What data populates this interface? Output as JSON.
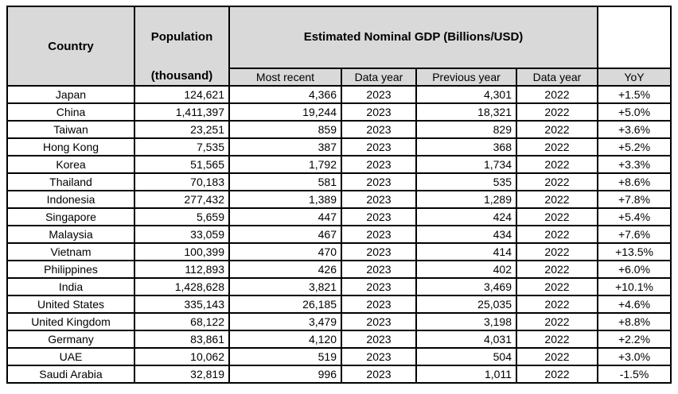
{
  "colors": {
    "header_bg": "#d9d9d9",
    "border": "#000000",
    "text": "#000000",
    "page_bg": "#ffffff",
    "row_bg": "#ffffff"
  },
  "header": {
    "country": "Country",
    "population_line1": "Population",
    "population_line2": "(thousand)",
    "gdp_group": "Estimated Nominal GDP (Billions/USD)",
    "subheaders": [
      "Most recent",
      "Data year",
      "Previous year",
      "Data year",
      "YoY"
    ]
  },
  "chart_data": {
    "type": "table",
    "title": "Estimated Nominal GDP (Billions/USD)",
    "columns": [
      "Country",
      "Population (thousand)",
      "Most recent",
      "Data year",
      "Previous year",
      "Data year",
      "YoY"
    ],
    "rows": [
      {
        "country": "Japan",
        "population": "124,621",
        "gdp_recent": "4,366",
        "data_year_recent": "2023",
        "gdp_previous": "4,301",
        "data_year_previous": "2022",
        "yoy": "+1.5%"
      },
      {
        "country": "China",
        "population": "1,411,397",
        "gdp_recent": "19,244",
        "data_year_recent": "2023",
        "gdp_previous": "18,321",
        "data_year_previous": "2022",
        "yoy": "+5.0%"
      },
      {
        "country": "Taiwan",
        "population": "23,251",
        "gdp_recent": "859",
        "data_year_recent": "2023",
        "gdp_previous": "829",
        "data_year_previous": "2022",
        "yoy": "+3.6%"
      },
      {
        "country": "Hong Kong",
        "population": "7,535",
        "gdp_recent": "387",
        "data_year_recent": "2023",
        "gdp_previous": "368",
        "data_year_previous": "2022",
        "yoy": "+5.2%"
      },
      {
        "country": "Korea",
        "population": "51,565",
        "gdp_recent": "1,792",
        "data_year_recent": "2023",
        "gdp_previous": "1,734",
        "data_year_previous": "2022",
        "yoy": "+3.3%"
      },
      {
        "country": "Thailand",
        "population": "70,183",
        "gdp_recent": "581",
        "data_year_recent": "2023",
        "gdp_previous": "535",
        "data_year_previous": "2022",
        "yoy": "+8.6%"
      },
      {
        "country": "Indonesia",
        "population": "277,432",
        "gdp_recent": "1,389",
        "data_year_recent": "2023",
        "gdp_previous": "1,289",
        "data_year_previous": "2022",
        "yoy": "+7.8%"
      },
      {
        "country": "Singapore",
        "population": "5,659",
        "gdp_recent": "447",
        "data_year_recent": "2023",
        "gdp_previous": "424",
        "data_year_previous": "2022",
        "yoy": "+5.4%"
      },
      {
        "country": "Malaysia",
        "population": "33,059",
        "gdp_recent": "467",
        "data_year_recent": "2023",
        "gdp_previous": "434",
        "data_year_previous": "2022",
        "yoy": "+7.6%"
      },
      {
        "country": "Vietnam",
        "population": "100,399",
        "gdp_recent": "470",
        "data_year_recent": "2023",
        "gdp_previous": "414",
        "data_year_previous": "2022",
        "yoy": "+13.5%"
      },
      {
        "country": "Philippines",
        "population": "112,893",
        "gdp_recent": "426",
        "data_year_recent": "2023",
        "gdp_previous": "402",
        "data_year_previous": "2022",
        "yoy": "+6.0%"
      },
      {
        "country": "India",
        "population": "1,428,628",
        "gdp_recent": "3,821",
        "data_year_recent": "2023",
        "gdp_previous": "3,469",
        "data_year_previous": "2022",
        "yoy": "+10.1%"
      },
      {
        "country": "United States",
        "population": "335,143",
        "gdp_recent": "26,185",
        "data_year_recent": "2023",
        "gdp_previous": "25,035",
        "data_year_previous": "2022",
        "yoy": "+4.6%"
      },
      {
        "country": "United Kingdom",
        "population": "68,122",
        "gdp_recent": "3,479",
        "data_year_recent": "2023",
        "gdp_previous": "3,198",
        "data_year_previous": "2022",
        "yoy": "+8.8%"
      },
      {
        "country": "Germany",
        "population": "83,861",
        "gdp_recent": "4,120",
        "data_year_recent": "2023",
        "gdp_previous": "4,031",
        "data_year_previous": "2022",
        "yoy": "+2.2%"
      },
      {
        "country": "UAE",
        "population": "10,062",
        "gdp_recent": "519",
        "data_year_recent": "2023",
        "gdp_previous": "504",
        "data_year_previous": "2022",
        "yoy": "+3.0%"
      },
      {
        "country": "Saudi Arabia",
        "population": "32,819",
        "gdp_recent": "996",
        "data_year_recent": "2023",
        "gdp_previous": "1,011",
        "data_year_previous": "2022",
        "yoy": "-1.5%"
      }
    ]
  }
}
